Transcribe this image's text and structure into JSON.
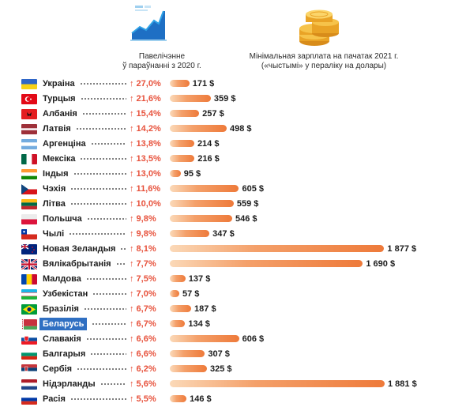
{
  "headers": {
    "increase": "Павелічэнне\nў параўнанні з 2020 г.",
    "wage": "Мінімальная зарплата на пачатак 2021 г.\n(«чыстымі» у пераліку на долары)"
  },
  "icons": {
    "growth": "growth-chart-icon",
    "coins": "coin-stack-icon"
  },
  "colors": {
    "increase_text": "#e7513b",
    "bar_start": "#fbd9b8",
    "bar_end": "#ee7a3a",
    "highlight": "#2f6fc2"
  },
  "chart_data": {
    "type": "bar",
    "categories": [
      "Украіна",
      "Турцыя",
      "Албанія",
      "Латвія",
      "Аргенціна",
      "Мексіка",
      "Індыя",
      "Чэхія",
      "Літва",
      "Польшча",
      "Чылі",
      "Новая Зеландыя",
      "Вялікабрытанія",
      "Малдова",
      "Узбекістан",
      "Бразілія",
      "Беларусь",
      "Славакія",
      "Балгарыя",
      "Сербія",
      "Нідэрланды",
      "Расія"
    ],
    "series": [
      {
        "values": [
          171,
          359,
          257,
          498,
          214,
          216,
          95,
          605,
          559,
          546,
          347,
          1877,
          1690,
          137,
          57,
          187,
          134,
          606,
          307,
          325,
          1881,
          146
        ]
      }
    ],
    "value_labels": [
      "171 $",
      "359 $",
      "257 $",
      "498 $",
      "214 $",
      "216 $",
      "95 $",
      "605 $",
      "559 $",
      "546 $",
      "347 $",
      "1 877 $",
      "1 690 $",
      "137 $",
      "57 $",
      "187 $",
      "134 $",
      "606 $",
      "307 $",
      "325 $",
      "1 881 $",
      "146 $"
    ],
    "increase_labels": [
      "↑ 27,0%",
      "↑ 21,6%",
      "↑ 15,4%",
      "↑ 14,2%",
      "↑ 13,8%",
      "↑ 13,5%",
      "↑ 13,0%",
      "↑ 11,6%",
      "↑ 10,0%",
      "↑ 9,8%",
      "↑ 9,8%",
      "↑ 8,1%",
      "↑ 7,7%",
      "↑ 7,5%",
      "↑ 7,0%",
      "↑ 6,7%",
      "↑ 6,7%",
      "↑ 6,6%",
      "↑ 6,6%",
      "↑ 6,2%",
      "↑ 5,6%",
      "↑ 5,5%"
    ],
    "increase_values": [
      27.0,
      21.6,
      15.4,
      14.2,
      13.8,
      13.5,
      13.0,
      11.6,
      10.0,
      9.8,
      9.8,
      8.1,
      7.7,
      7.5,
      7.0,
      6.7,
      6.7,
      6.6,
      6.6,
      6.2,
      5.6,
      5.5
    ],
    "highlighted_category": "Беларусь",
    "xlim": [
      0,
      1881
    ],
    "grid": false,
    "flags": [
      "ua",
      "tr",
      "al",
      "lv",
      "ar",
      "mx",
      "in",
      "cz",
      "lt",
      "pl",
      "cl",
      "nz",
      "gb",
      "md",
      "uz",
      "br",
      "by",
      "sk",
      "bg",
      "rs",
      "nl",
      "ru"
    ]
  }
}
